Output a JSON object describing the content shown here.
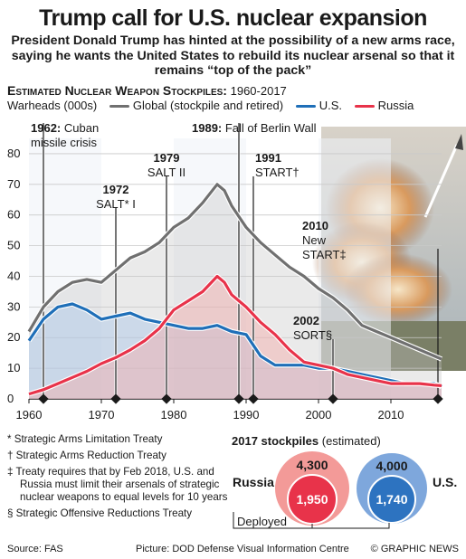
{
  "title": "Trump call for U.S. nuclear expansion",
  "subtitle": "President Donald Trump has hinted at the possibility of a new arms race, saying he wants the United States to rebuild its nuclear arsenal so that it remains “top of the pack”",
  "chart_heading": "Estimated Nuclear Weapon Stockpiles:",
  "chart_years": "1960-2017",
  "legend": {
    "unit": "Warheads (000s)",
    "global": "Global (stockpile and retired)",
    "us": "U.S.",
    "russia": "Russia"
  },
  "colors": {
    "global": "#707070",
    "us": "#1f6fb8",
    "russia": "#e8334a",
    "us_circle": "#2d73c0",
    "russia_circle": "#e8334a"
  },
  "chart_data": {
    "type": "line",
    "xlabel": "",
    "ylabel": "Warheads (000s)",
    "xlim": [
      1960,
      2017
    ],
    "ylim": [
      0,
      85
    ],
    "xticks": [
      1960,
      1970,
      1980,
      1990,
      2000,
      2010
    ],
    "yticks": [
      0,
      10,
      20,
      30,
      40,
      50,
      60,
      70,
      80
    ],
    "x": [
      1960,
      1962,
      1964,
      1966,
      1968,
      1970,
      1972,
      1974,
      1976,
      1978,
      1980,
      1982,
      1984,
      1986,
      1987,
      1988,
      1990,
      1992,
      1994,
      1996,
      1998,
      2000,
      2002,
      2004,
      2006,
      2008,
      2010,
      2012,
      2014,
      2016,
      2017
    ],
    "series": [
      {
        "name": "Global (stockpile and retired)",
        "values": [
          22,
          30,
          35,
          38,
          39,
          38,
          42,
          46,
          48,
          51,
          56,
          59,
          64,
          70,
          68,
          63,
          56,
          51,
          47,
          43,
          40,
          36,
          33,
          29,
          24,
          22,
          20,
          18,
          16,
          14,
          13
        ]
      },
      {
        "name": "U.S.",
        "values": [
          19,
          26,
          30,
          31,
          29,
          26,
          27,
          28,
          26,
          25,
          24,
          23,
          23,
          24,
          23,
          22,
          21,
          14,
          11,
          11,
          11,
          10,
          10,
          9,
          8,
          7,
          6,
          5,
          5,
          5,
          4
        ]
      },
      {
        "name": "Russia",
        "values": [
          1.6,
          3,
          5,
          7,
          9,
          11.5,
          13.5,
          16,
          19,
          23,
          29,
          32,
          35,
          40,
          38,
          34,
          30,
          25,
          21,
          16,
          12,
          11,
          10,
          8,
          7,
          6,
          5,
          5,
          5,
          4.5,
          4.3
        ]
      }
    ],
    "events": [
      {
        "year": 1962,
        "label_bold": "1962:",
        "label": "Cuban missile crisis"
      },
      {
        "year": 1972,
        "label_bold": "1972",
        "label": "SALT* I"
      },
      {
        "year": 1979,
        "label_bold": "1979",
        "label": "SALT II"
      },
      {
        "year": 1989,
        "label_bold": "1989:",
        "label": "Fall of Berlin Wall"
      },
      {
        "year": 1991,
        "label_bold": "1991",
        "label": "START†"
      },
      {
        "year": 2010,
        "label_bold": "2010",
        "label": "New START‡"
      },
      {
        "year": 2002,
        "label_bold": "2002",
        "label": "SORT§"
      }
    ]
  },
  "notes": [
    "*  Strategic Arms Limitation Treaty",
    "† Strategic Arms Reduction Treaty",
    "‡ Treaty requires that by Feb 2018, U.S. and Russia must limit their arsenals of strategic nuclear weapons to equal levels for 10 years",
    "§ Strategic Offensive Reductions Treaty"
  ],
  "stockpiles": {
    "heading": "2017 stockpiles",
    "heading_note": "(estimated)",
    "russia_label": "Russia",
    "us_label": "U.S.",
    "russia_total": "4,300",
    "russia_deployed": "1,950",
    "us_total": "4,000",
    "us_deployed": "1,740",
    "deployed_label": "Deployed"
  },
  "footer": {
    "source": "Source: FAS",
    "picture": "Picture: DOD Defense Visual Information Centre",
    "credit": "© GRAPHIC NEWS"
  }
}
